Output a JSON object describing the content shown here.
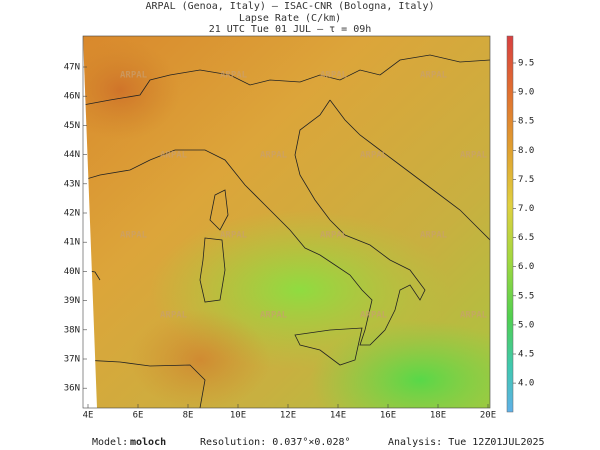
{
  "header": {
    "title": "ARPAL (Genoa, Italy)  –  ISAC-CNR (Bologna, Italy)",
    "subtitle": "Lapse Rate (C/km)",
    "time": "21 UTC Tue 01 JUL  –  τ = 09h"
  },
  "map": {
    "lat_labels": [
      "47N",
      "46N",
      "45N",
      "44N",
      "43N",
      "42N",
      "41N",
      "40N",
      "39N",
      "38N",
      "37N",
      "36N"
    ],
    "lon_labels": [
      "4E",
      "6E",
      "8E",
      "10E",
      "12E",
      "14E",
      "16E",
      "18E",
      "20E"
    ],
    "watermark": "ARPAL"
  },
  "colorbar": {
    "labels": [
      "9.5",
      "9.0",
      "8.5",
      "8.0",
      "7.5",
      "7.0",
      "6.5",
      "6.0",
      "5.5",
      "5.0",
      "4.5",
      "4.0"
    ]
  },
  "footer": {
    "model_label": "Model:",
    "model": "moloch",
    "resolution": "Resolution: 0.037°×0.028°",
    "analysis": "Analysis: Tue 12Z01JUL2025"
  }
}
